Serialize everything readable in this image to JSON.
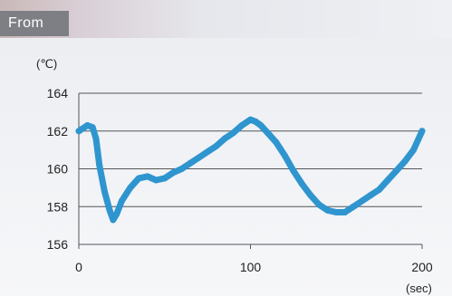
{
  "header": {
    "tab_label": "From"
  },
  "chart_data": {
    "type": "line",
    "title": "",
    "xlabel": "(sec)",
    "ylabel": "(℃)",
    "xlim": [
      0,
      200
    ],
    "ylim": [
      156,
      164
    ],
    "x_ticks": [
      0,
      100,
      200
    ],
    "x_tick_labels": [
      "0",
      "100",
      "200"
    ],
    "y_ticks": [
      156,
      158,
      160,
      162,
      164
    ],
    "y_tick_labels": [
      "156",
      "158",
      "160",
      "162",
      "164"
    ],
    "grid": "horizontal",
    "series_color": "#2f95cf",
    "series": [
      {
        "x": [
          0,
          5,
          8,
          10,
          12,
          15,
          18,
          20,
          22,
          25,
          30,
          35,
          40,
          45,
          50,
          55,
          60,
          65,
          70,
          75,
          80,
          85,
          90,
          95,
          100,
          103,
          106,
          110,
          115,
          120,
          125,
          130,
          135,
          140,
          145,
          150,
          155,
          160,
          165,
          170,
          175,
          180,
          185,
          190,
          195,
          200
        ],
        "y": [
          162.0,
          162.3,
          162.2,
          161.6,
          160.2,
          158.8,
          157.8,
          157.3,
          157.6,
          158.3,
          159.0,
          159.5,
          159.6,
          159.4,
          159.5,
          159.8,
          160.0,
          160.3,
          160.6,
          160.9,
          161.2,
          161.6,
          161.9,
          162.3,
          162.6,
          162.5,
          162.3,
          161.9,
          161.4,
          160.7,
          159.9,
          159.2,
          158.6,
          158.1,
          157.8,
          157.7,
          157.7,
          158.0,
          158.3,
          158.6,
          158.9,
          159.4,
          159.9,
          160.4,
          161.0,
          162.0
        ]
      }
    ]
  }
}
